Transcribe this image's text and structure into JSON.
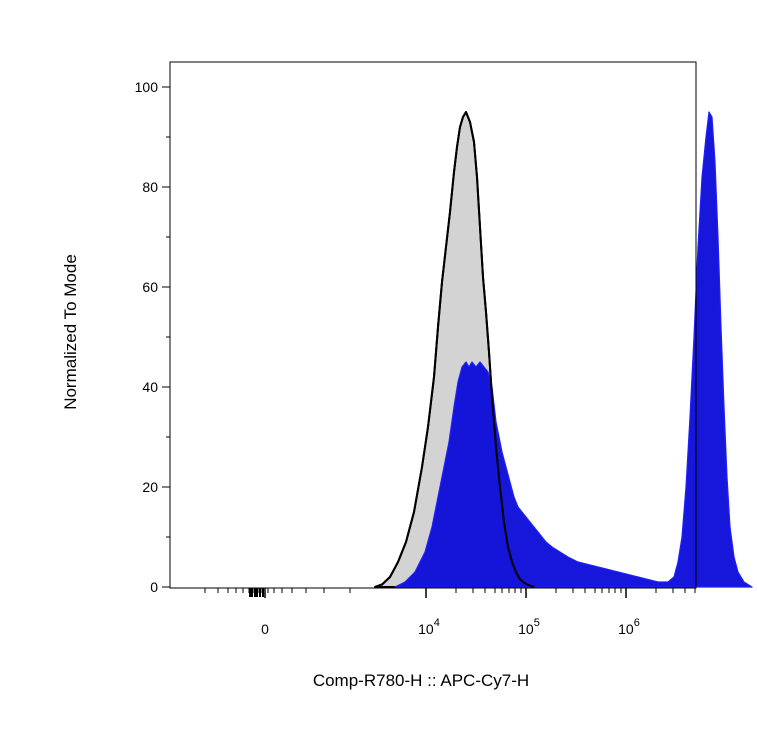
{
  "chart_data": {
    "type": "area",
    "xlabel": "Comp-R780-H :: APC-Cy7-H",
    "ylabel": "Normalized To Mode",
    "x_scale": "biexponential",
    "ylim": [
      0,
      100
    ],
    "yticks": [
      0,
      20,
      40,
      60,
      80,
      100
    ],
    "xticks": [
      {
        "label": "0"
      },
      {
        "base": "10",
        "exp": "4"
      },
      {
        "base": "10",
        "exp": "5"
      },
      {
        "base": "10",
        "exp": "6"
      }
    ],
    "grid": false,
    "legend": "none",
    "series": [
      {
        "fill": "#d3d3d3",
        "stroke": "#000000",
        "points": [
          [
            205,
            0
          ],
          [
            212,
            0.5
          ],
          [
            220,
            2
          ],
          [
            228,
            5
          ],
          [
            236,
            9
          ],
          [
            244,
            15
          ],
          [
            252,
            24
          ],
          [
            258,
            32
          ],
          [
            264,
            42
          ],
          [
            268,
            52
          ],
          [
            272,
            61
          ],
          [
            276,
            68
          ],
          [
            280,
            75
          ],
          [
            284,
            83
          ],
          [
            287,
            88
          ],
          [
            290,
            92
          ],
          [
            293,
            94
          ],
          [
            296,
            95
          ],
          [
            300,
            93
          ],
          [
            304,
            89
          ],
          [
            307,
            82
          ],
          [
            310,
            72
          ],
          [
            313,
            62
          ],
          [
            316,
            55
          ],
          [
            319,
            47
          ],
          [
            322,
            38
          ],
          [
            326,
            28
          ],
          [
            330,
            20
          ],
          [
            334,
            13
          ],
          [
            338,
            8
          ],
          [
            342,
            5
          ],
          [
            346,
            3
          ],
          [
            350,
            1.5
          ],
          [
            356,
            0.6
          ],
          [
            364,
            0
          ]
        ]
      },
      {
        "fill": "#0b0bd9",
        "stroke": "#1f1fff",
        "points": [
          [
            225,
            0
          ],
          [
            235,
            1
          ],
          [
            245,
            3
          ],
          [
            255,
            7
          ],
          [
            262,
            12
          ],
          [
            268,
            18
          ],
          [
            274,
            24
          ],
          [
            279,
            29
          ],
          [
            284,
            36
          ],
          [
            288,
            41
          ],
          [
            292,
            44
          ],
          [
            296,
            45
          ],
          [
            299,
            44
          ],
          [
            302,
            45
          ],
          [
            306,
            44
          ],
          [
            310,
            45
          ],
          [
            314,
            44
          ],
          [
            318,
            43
          ],
          [
            322,
            40
          ],
          [
            326,
            33
          ],
          [
            329,
            30
          ],
          [
            332,
            27
          ],
          [
            336,
            24
          ],
          [
            340,
            21
          ],
          [
            344,
            18
          ],
          [
            348,
            16
          ],
          [
            352,
            15
          ],
          [
            356,
            14
          ],
          [
            360,
            13
          ],
          [
            364,
            12
          ],
          [
            368,
            11
          ],
          [
            372,
            10
          ],
          [
            376,
            9
          ],
          [
            382,
            8
          ],
          [
            390,
            7
          ],
          [
            398,
            6
          ],
          [
            408,
            5
          ],
          [
            418,
            4.5
          ],
          [
            428,
            4
          ],
          [
            438,
            3.5
          ],
          [
            448,
            3
          ],
          [
            458,
            2.5
          ],
          [
            468,
            2
          ],
          [
            478,
            1.5
          ],
          [
            488,
            1
          ],
          [
            498,
            1
          ],
          [
            504,
            2
          ],
          [
            508,
            5
          ],
          [
            512,
            10
          ],
          [
            516,
            20
          ],
          [
            520,
            34
          ],
          [
            524,
            50
          ],
          [
            528,
            68
          ],
          [
            532,
            82
          ],
          [
            536,
            90
          ],
          [
            539,
            95
          ],
          [
            542,
            94
          ],
          [
            545,
            85
          ],
          [
            548,
            70
          ],
          [
            551,
            52
          ],
          [
            554,
            36
          ],
          [
            557,
            22
          ],
          [
            560,
            12
          ],
          [
            564,
            6
          ],
          [
            568,
            3
          ],
          [
            574,
            1
          ],
          [
            582,
            0
          ]
        ]
      }
    ]
  }
}
